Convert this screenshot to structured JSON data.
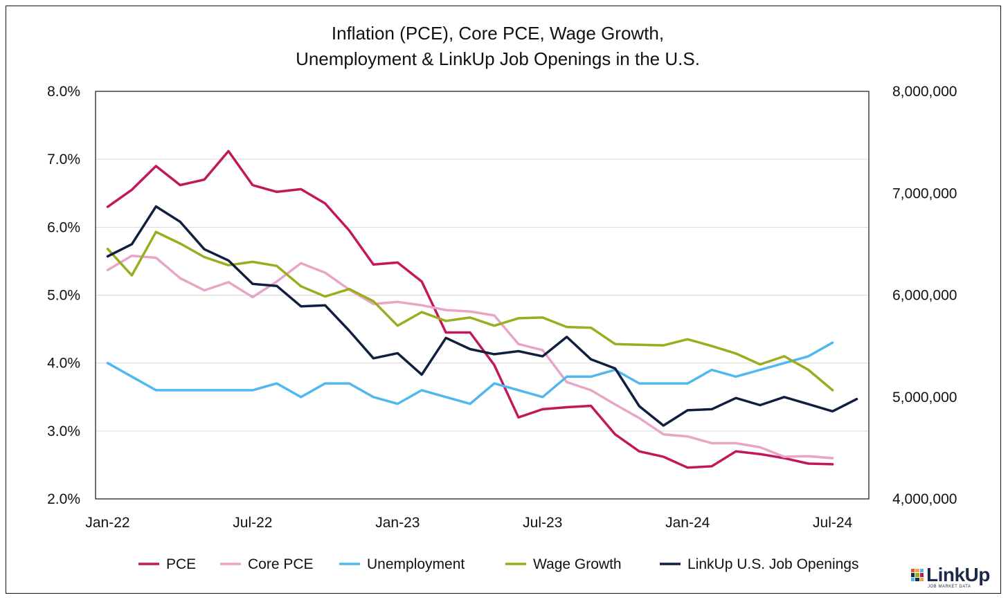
{
  "chart_data": {
    "type": "line",
    "title_lines": [
      "Inflation (PCE), Core PCE, Wage Growth,",
      "Unemployment & LinkUp Job Openings in the U.S."
    ],
    "x": [
      "Jan-22",
      "Feb-22",
      "Mar-22",
      "Apr-22",
      "May-22",
      "Jun-22",
      "Jul-22",
      "Aug-22",
      "Sep-22",
      "Oct-22",
      "Nov-22",
      "Dec-22",
      "Jan-23",
      "Feb-23",
      "Mar-23",
      "Apr-23",
      "May-23",
      "Jun-23",
      "Jul-23",
      "Aug-23",
      "Sep-23",
      "Oct-23",
      "Nov-23",
      "Dec-23",
      "Jan-24",
      "Feb-24",
      "Mar-24",
      "Apr-24",
      "May-24",
      "Jun-24",
      "Jul-24",
      "Aug-24"
    ],
    "x_tick_labels": [
      "Jan-22",
      "Jul-22",
      "Jan-23",
      "Jul-23",
      "Jan-24",
      "Jul-24"
    ],
    "y_left": {
      "min": 2.0,
      "max": 8.0,
      "ticks": [
        "2.0%",
        "3.0%",
        "4.0%",
        "5.0%",
        "6.0%",
        "7.0%",
        "8.0%"
      ]
    },
    "y_right": {
      "min": 4000000,
      "max": 8000000,
      "ticks": [
        "4,000,000",
        "5,000,000",
        "6,000,000",
        "7,000,000",
        "8,000,000"
      ]
    },
    "grid": "horizontal",
    "legend_position": "bottom",
    "series": [
      {
        "name": "PCE",
        "axis": "left",
        "color": "#c2185b",
        "values": [
          6.3,
          6.55,
          6.9,
          6.62,
          6.7,
          7.12,
          6.62,
          6.52,
          6.56,
          6.35,
          5.95,
          5.45,
          5.48,
          5.2,
          4.45,
          4.45,
          3.97,
          3.2,
          3.32,
          3.35,
          3.37,
          2.95,
          2.7,
          2.62,
          2.46,
          2.48,
          2.7,
          2.66,
          2.6,
          2.52,
          2.51,
          null
        ]
      },
      {
        "name": "Core PCE",
        "axis": "left",
        "color": "#e8a5c6",
        "values": [
          5.37,
          5.58,
          5.55,
          5.25,
          5.07,
          5.19,
          4.97,
          5.2,
          5.47,
          5.33,
          5.08,
          4.87,
          4.9,
          4.85,
          4.78,
          4.76,
          4.7,
          4.28,
          4.19,
          3.72,
          3.6,
          3.39,
          3.19,
          2.95,
          2.92,
          2.82,
          2.82,
          2.76,
          2.62,
          2.63,
          2.6,
          null
        ]
      },
      {
        "name": "Unemployment",
        "axis": "left",
        "color": "#4fb8ee",
        "values": [
          4.0,
          3.8,
          3.6,
          3.6,
          3.6,
          3.6,
          3.6,
          3.7,
          3.5,
          3.7,
          3.7,
          3.5,
          3.4,
          3.6,
          3.5,
          3.4,
          3.7,
          3.6,
          3.5,
          3.8,
          3.8,
          3.9,
          3.7,
          3.7,
          3.7,
          3.9,
          3.8,
          3.9,
          4.0,
          4.1,
          4.3,
          null
        ]
      },
      {
        "name": "Wage Growth",
        "axis": "left",
        "color": "#9aad1e",
        "values": [
          5.68,
          5.29,
          5.93,
          5.76,
          5.56,
          5.44,
          5.49,
          5.43,
          5.13,
          4.98,
          5.09,
          4.91,
          4.55,
          4.75,
          4.62,
          4.67,
          4.55,
          4.66,
          4.67,
          4.53,
          4.52,
          4.28,
          4.27,
          4.26,
          4.35,
          4.25,
          4.14,
          3.98,
          4.1,
          3.9,
          3.6,
          null
        ]
      },
      {
        "name": "LinkUp U.S. Job Openings",
        "axis": "right",
        "color": "#0f1f3d",
        "values": [
          6380000,
          6500000,
          6870000,
          6720000,
          6450000,
          6340000,
          6110000,
          6090000,
          5890000,
          5900000,
          5650000,
          5380000,
          5430000,
          5220000,
          5580000,
          5470000,
          5420000,
          5450000,
          5400000,
          5590000,
          5370000,
          5280000,
          4910000,
          4720000,
          4870000,
          4880000,
          4990000,
          4920000,
          5000000,
          4930000,
          4860000,
          4980000
        ]
      }
    ]
  },
  "brand": {
    "name": "LinkUp",
    "tagline": "JOB MARKET DATA"
  }
}
